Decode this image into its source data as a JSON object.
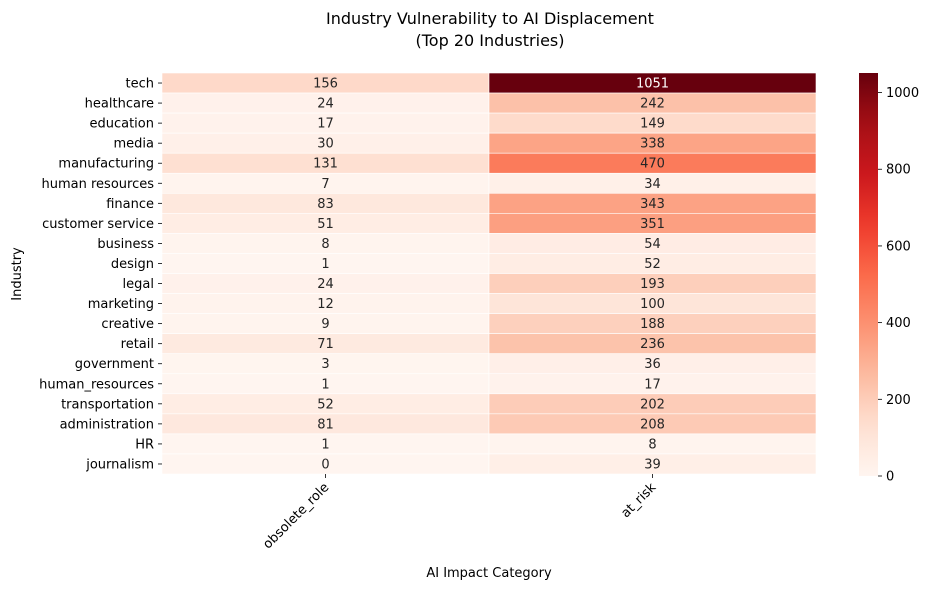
{
  "chart_data": {
    "type": "heatmap",
    "title_line1": "Industry Vulnerability to AI Displacement",
    "title_line2": "(Top 20 Industries)",
    "xlabel": "AI Impact Category",
    "ylabel": "Industry",
    "columns": [
      "obsolete_role",
      "at_risk"
    ],
    "rows": [
      "tech",
      "healthcare",
      "education",
      "media",
      "manufacturing",
      "human resources",
      "finance",
      "customer service",
      "business",
      "design",
      "legal",
      "marketing",
      "creative",
      "retail",
      "government",
      "human_resources",
      "transportation",
      "administration",
      "HR",
      "journalism"
    ],
    "values": [
      [
        156,
        1051
      ],
      [
        24,
        242
      ],
      [
        17,
        149
      ],
      [
        30,
        338
      ],
      [
        131,
        470
      ],
      [
        7,
        34
      ],
      [
        83,
        343
      ],
      [
        51,
        351
      ],
      [
        8,
        54
      ],
      [
        1,
        52
      ],
      [
        24,
        193
      ],
      [
        12,
        100
      ],
      [
        9,
        188
      ],
      [
        71,
        236
      ],
      [
        3,
        36
      ],
      [
        1,
        17
      ],
      [
        52,
        202
      ],
      [
        81,
        208
      ],
      [
        1,
        8
      ],
      [
        0,
        39
      ]
    ],
    "vmin": 0,
    "vmax": 1051,
    "colormap": "Reds",
    "colorbar_ticks": [
      "0",
      "200",
      "400",
      "600",
      "800",
      "1000"
    ],
    "colorbar_tick_values": [
      0,
      200,
      400,
      600,
      800,
      1000
    ]
  }
}
